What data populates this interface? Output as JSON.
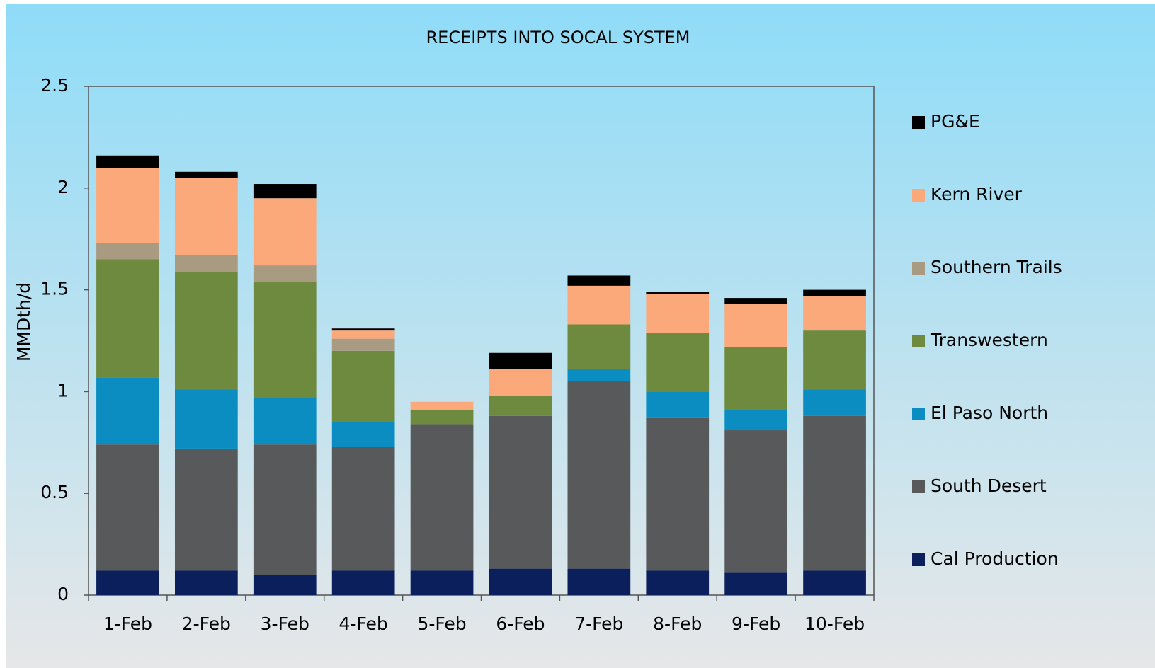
{
  "chart_data": {
    "type": "stacked_bar",
    "title": "RECEIPTS INTO SOCAL SYSTEM",
    "y_label": "MMDth/d",
    "categories": [
      "1-Feb",
      "2-Feb",
      "3-Feb",
      "4-Feb",
      "5-Feb",
      "6-Feb",
      "7-Feb",
      "8-Feb",
      "9-Feb",
      "10-Feb"
    ],
    "series": [
      {
        "name": "Cal Production",
        "color": "#0b1f5c",
        "values": [
          0.12,
          0.12,
          0.1,
          0.12,
          0.12,
          0.13,
          0.13,
          0.12,
          0.11,
          0.12
        ]
      },
      {
        "name": "South Desert",
        "color": "#58595b",
        "values": [
          0.62,
          0.6,
          0.64,
          0.61,
          0.72,
          0.75,
          0.92,
          0.75,
          0.7,
          0.76
        ]
      },
      {
        "name": "El Paso North",
        "color": "#0b8dc2",
        "values": [
          0.33,
          0.29,
          0.23,
          0.12,
          0,
          0,
          0.06,
          0.13,
          0.1,
          0.13
        ]
      },
      {
        "name": "Transwestern",
        "color": "#6d8a3e",
        "values": [
          0.58,
          0.58,
          0.57,
          0.35,
          0.07,
          0.1,
          0.22,
          0.29,
          0.31,
          0.29
        ]
      },
      {
        "name": "Southern Trails",
        "color": "#a99a82",
        "values": [
          0.08,
          0.08,
          0.08,
          0.06,
          0,
          0,
          0,
          0,
          0,
          0
        ]
      },
      {
        "name": "Kern River",
        "color": "#fba97a",
        "values": [
          0.37,
          0.38,
          0.33,
          0.04,
          0.04,
          0.13,
          0.19,
          0.19,
          0.21,
          0.17
        ]
      },
      {
        "name": "PG&E",
        "color": "#000000",
        "values": [
          0.06,
          0.03,
          0.07,
          0.01,
          0,
          0.08,
          0.05,
          0.01,
          0.03,
          0.03
        ]
      }
    ],
    "ylim": [
      0,
      2.5
    ],
    "yticks": [
      0,
      0.5,
      1,
      1.5,
      2,
      2.5
    ],
    "legend": "right"
  }
}
